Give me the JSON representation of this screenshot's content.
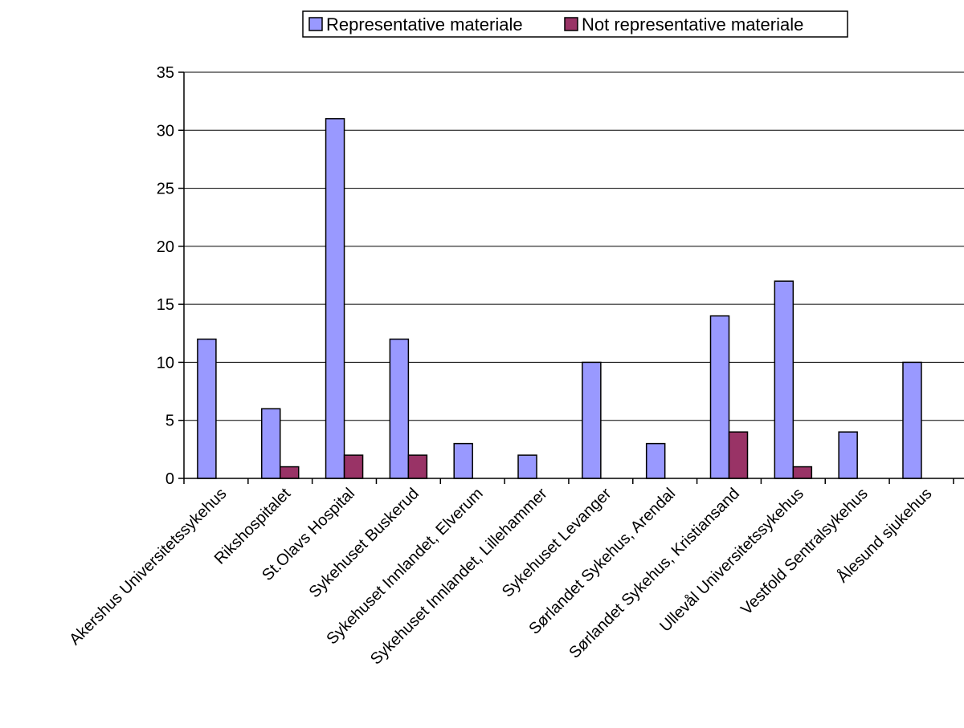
{
  "chart_data": {
    "type": "bar",
    "categories": [
      "Akershus Universitetssykehus",
      "Rikshospitalet",
      "St.Olavs Hospital",
      "Sykehuset Buskerud",
      "Sykehuset Innlandet, Elverum",
      "Sykehuset Innlandet, Lillehammer",
      "Sykehuset Levanger",
      "Sørlandet Sykehus, Arendal",
      "Sørlandet Sykehus, Kristiansand",
      "Ullevål Universitetssykehus",
      "Vestfold Sentralsykehus",
      "Ålesund sjukehus"
    ],
    "series": [
      {
        "name": "Representative materiale",
        "color": "#9999FF",
        "values": [
          12,
          6,
          31,
          12,
          3,
          2,
          10,
          3,
          14,
          17,
          4,
          10
        ]
      },
      {
        "name": "Not representative materiale",
        "color": "#993366",
        "values": [
          0,
          1,
          2,
          2,
          0,
          0,
          0,
          0,
          4,
          1,
          0,
          0
        ]
      }
    ],
    "title": "",
    "xlabel": "",
    "ylabel": "",
    "ylim": [
      0,
      35
    ],
    "yticks": [
      0,
      5,
      10,
      15,
      20,
      25,
      30,
      35
    ],
    "grid": "horizontal",
    "legend_position": "top"
  }
}
